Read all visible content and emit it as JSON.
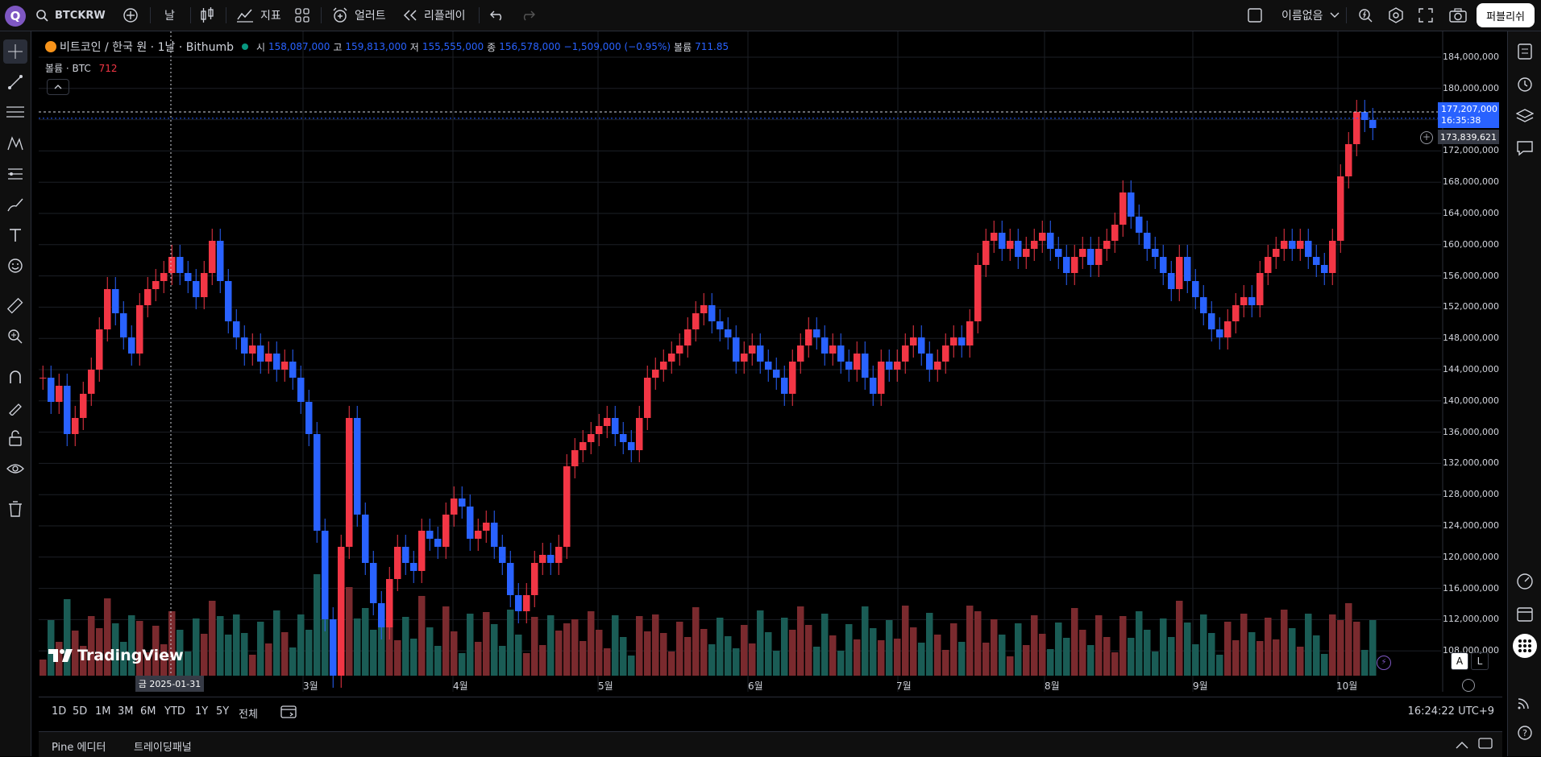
{
  "topbar": {
    "logo": "Q",
    "symbol": "BTCKRW",
    "interval": "날",
    "indicators_label": "지표",
    "alert_label": "얼러트",
    "replay_label": "리플레이",
    "layout_name": "이름없음",
    "publish_label": "퍼블리쉬",
    "icons": [
      "search-icon",
      "plus-circle-icon",
      "candles-icon",
      "chart-line-icon",
      "grid-icon",
      "alarm-plus-icon",
      "replay-icon",
      "undo-icon",
      "redo-icon",
      "layout-box-icon",
      "chevron-down-icon",
      "quick-search-icon",
      "settings-icon",
      "fullscreen-icon",
      "camera-icon"
    ]
  },
  "legend": {
    "title": "비트코인 / 한국 원 · 1날 · Bithumb",
    "open_label": "시",
    "open": "158,087,000",
    "high_label": "고",
    "high": "159,813,000",
    "low_label": "저",
    "low": "155,555,000",
    "close_label": "종",
    "close": "156,578,000",
    "change": "−1,509,000 (−0.95%)",
    "volume_label": "볼륨",
    "volume": "711.85",
    "vol_indicator": "볼륨 · BTC",
    "vol_indicator_value": "712"
  },
  "price_badge": {
    "price": "177,207,000",
    "countdown": "16:35:38"
  },
  "crosshair_badge": "173,839,621",
  "date_badge": "금  2025-01-31",
  "tv_logo": "TradingView",
  "y_axis": [
    "184,000,000",
    "180,000,000",
    "176,000,000",
    "172,000,000",
    "168,000,000",
    "164,000,000",
    "160,000,000",
    "156,000,000",
    "152,000,000",
    "148,000,000",
    "144,000,000",
    "140,000,000",
    "136,000,000",
    "132,000,000",
    "128,000,000",
    "124,000,000",
    "120,000,000",
    "116,000,000",
    "112,000,000",
    "108,000,000"
  ],
  "x_axis": [
    "3월",
    "4월",
    "5월",
    "6월",
    "7월",
    "8월",
    "9월",
    "10월"
  ],
  "scale_buttons": [
    "A",
    "L"
  ],
  "ranges": [
    "1D",
    "5D",
    "1M",
    "3M",
    "6M",
    "YTD",
    "1Y",
    "5Y",
    "전체"
  ],
  "clock": "16:24:22 UTC+9",
  "panel": {
    "pine": "Pine 에디터",
    "trading": "트레이딩패널"
  },
  "colors": {
    "up": "#f23645",
    "down": "#2962ff",
    "vol_up": "#7a2a2e",
    "vol_down": "#1a5c55"
  },
  "chart_data": {
    "type": "candlestick",
    "title": "비트코인 / 한국 원 · 1날 · Bithumb",
    "ylim": [
      108000000,
      186000000
    ],
    "series": [
      {
        "name": "BTCKRW",
        "values": [
          145,
          142,
          144,
          138,
          140,
          143,
          146,
          151,
          156,
          153,
          150,
          148,
          154,
          156,
          157,
          158,
          160,
          158,
          157,
          155,
          158,
          162,
          157,
          152,
          150,
          148,
          149,
          147,
          148,
          146,
          147,
          145,
          142,
          138,
          126,
          115,
          108,
          124,
          140,
          128,
          122,
          117,
          114,
          120,
          124,
          122,
          121,
          126,
          125,
          124,
          128,
          130,
          129,
          125,
          126,
          127,
          124,
          122,
          118,
          116,
          118,
          122,
          123,
          122,
          124,
          134,
          136,
          137,
          138,
          139,
          140,
          138,
          137,
          136,
          140,
          145,
          146,
          147,
          148,
          149,
          151,
          153,
          154,
          152,
          151,
          150,
          147,
          148,
          149,
          147,
          146,
          145,
          143,
          147,
          149,
          151,
          150,
          148,
          149,
          147,
          146,
          148,
          145,
          143,
          147,
          146,
          147,
          149,
          150,
          148,
          146,
          147,
          149,
          150,
          149,
          152,
          159,
          162,
          163,
          161,
          162,
          160,
          161,
          162,
          163,
          161,
          160,
          158,
          160,
          161,
          159,
          161,
          162,
          164,
          168,
          165,
          163,
          161,
          160,
          158,
          156,
          160,
          157,
          155,
          153,
          151,
          150,
          152,
          154,
          155,
          154,
          158,
          160,
          161,
          162,
          161,
          162,
          160,
          159,
          158,
          162,
          170,
          174,
          178,
          177,
          176
        ]
      }
    ]
  }
}
